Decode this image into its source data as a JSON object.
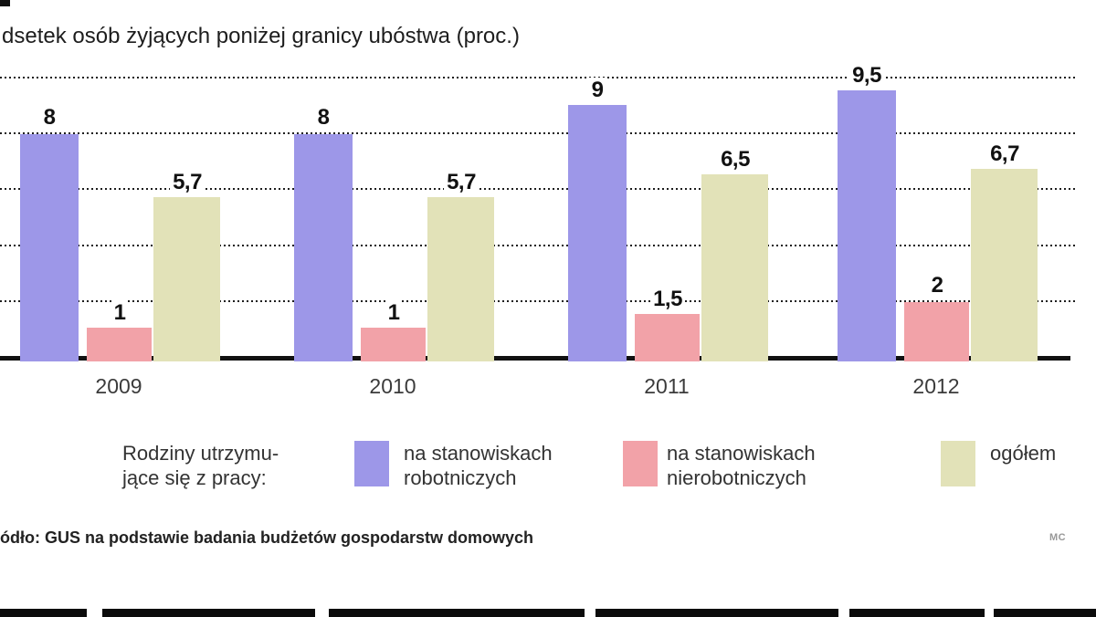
{
  "title": "dsetek osób żyjących poniżej granicy ubóstwa (proc.)",
  "source_note": "ódło: GUS na podstawie badania budżetów gospodarstw domowych",
  "credit": "MC",
  "legend": {
    "intro_line1": "Rodziny utrzymu-",
    "intro_line2": "jące się z pracy:",
    "items": [
      {
        "label_line1": "na stanowiskach",
        "label_line2": "robotniczych",
        "color": "#9d97e8"
      },
      {
        "label_line1": "na stanowiskach",
        "label_line2": "nierobotniczych",
        "color": "#f2a2a8"
      },
      {
        "label_line1": "ogółem",
        "label_line2": "",
        "color": "#e2e2b8"
      }
    ]
  },
  "chart_data": {
    "type": "bar",
    "title": "dsetek osób żyjących poniżej granicy ubóstwa (proc.)",
    "categories": [
      "2009",
      "2010",
      "2011",
      "2012"
    ],
    "series": [
      {
        "name": "na stanowiskach robotniczych",
        "color": "#9d97e8",
        "values": [
          8,
          8,
          9,
          9.5
        ],
        "labels": [
          "8",
          "8",
          "9",
          "9,5"
        ]
      },
      {
        "name": "na stanowiskach nierobotniczych",
        "color": "#f2a2a8",
        "values": [
          1,
          1,
          1.5,
          2
        ],
        "labels": [
          "1",
          "1",
          "1,5",
          "2"
        ]
      },
      {
        "name": "ogółem",
        "color": "#e2e2b8",
        "values": [
          5.7,
          5.7,
          6.5,
          6.7
        ],
        "labels": [
          "5,7",
          "5,7",
          "6,5",
          "6,7"
        ]
      }
    ],
    "ylim": [
      0,
      10
    ],
    "gridlines": [
      2,
      4,
      6,
      8,
      10
    ],
    "grid": "dotted-horizontal",
    "legend_position": "bottom",
    "value_labels": "above-bars, comma decimal separator"
  }
}
